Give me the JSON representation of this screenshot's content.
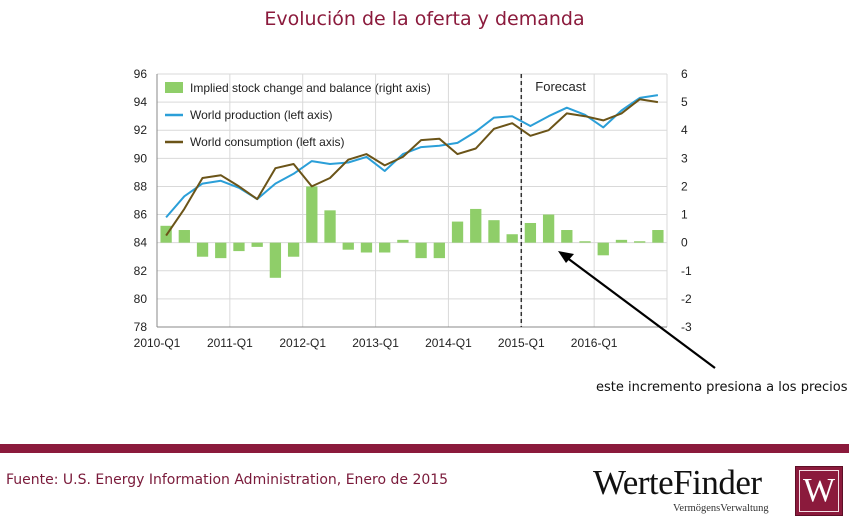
{
  "page": {
    "title": "Evolución de la oferta y demanda",
    "annotation": "este incremento presiona a los precios",
    "source": "Fuente: U.S. Energy Information Administration, Enero de 2015",
    "logo": {
      "name": "WerteFinder",
      "tagline": "VermögensVerwaltung",
      "monogram": "W"
    }
  },
  "colors": {
    "title": "#8b1a3c",
    "bars": "#8fce69",
    "production": "#2b9fd8",
    "consumption": "#6b5418",
    "forecast_line": "#333333",
    "footer_bar": "#8b1a3c"
  },
  "chart_data": {
    "type": "bar",
    "forecast_label": "Forecast",
    "forecast_start": "2015-Q1",
    "grid": true,
    "legend_position": "top-left",
    "x_tick_labels": [
      "2010-Q1",
      "2011-Q1",
      "2012-Q1",
      "2013-Q1",
      "2014-Q1",
      "2015-Q1",
      "2016-Q1"
    ],
    "categories": [
      "2010-Q1",
      "2010-Q2",
      "2010-Q3",
      "2010-Q4",
      "2011-Q1",
      "2011-Q2",
      "2011-Q3",
      "2011-Q4",
      "2012-Q1",
      "2012-Q2",
      "2012-Q3",
      "2012-Q4",
      "2013-Q1",
      "2013-Q2",
      "2013-Q3",
      "2013-Q4",
      "2014-Q1",
      "2014-Q2",
      "2014-Q3",
      "2014-Q4",
      "2015-Q1",
      "2015-Q2",
      "2015-Q3",
      "2015-Q4",
      "2016-Q1",
      "2016-Q2",
      "2016-Q3",
      "2016-Q4"
    ],
    "y_left": {
      "ylim": [
        78,
        96
      ],
      "ticks": [
        78,
        80,
        82,
        84,
        86,
        88,
        90,
        92,
        94,
        96
      ]
    },
    "y_right": {
      "ylim": [
        -3,
        6
      ],
      "ticks": [
        -3,
        -2,
        -1,
        0,
        1,
        2,
        3,
        4,
        5,
        6
      ]
    },
    "series": [
      {
        "name": "Implied stock change and balance (right axis)",
        "type": "bar",
        "axis": "right",
        "values": [
          0.6,
          0.45,
          -0.5,
          -0.55,
          -0.3,
          -0.15,
          -1.25,
          -0.5,
          2.0,
          1.15,
          -0.25,
          -0.35,
          -0.35,
          0.1,
          -0.55,
          -0.55,
          0.75,
          1.2,
          0.8,
          0.3,
          0.7,
          1.0,
          0.45,
          0.05,
          -0.45,
          0.1,
          0.05,
          0.45
        ]
      },
      {
        "name": "World production (left axis)",
        "type": "line",
        "axis": "left",
        "values": [
          85.8,
          87.3,
          88.2,
          88.4,
          87.9,
          87.1,
          88.2,
          88.9,
          89.8,
          89.6,
          89.7,
          90.1,
          89.1,
          90.3,
          90.8,
          90.9,
          91.1,
          91.9,
          92.9,
          93.0,
          92.3,
          93.0,
          93.6,
          93.1,
          92.2,
          93.4,
          94.3,
          94.5
        ]
      },
      {
        "name": "World consumption (left axis)",
        "type": "line",
        "axis": "left",
        "values": [
          84.5,
          86.4,
          88.6,
          88.8,
          88.0,
          87.1,
          89.3,
          89.6,
          88.0,
          88.6,
          89.9,
          90.3,
          89.5,
          90.1,
          91.3,
          91.4,
          90.3,
          90.7,
          92.1,
          92.5,
          91.6,
          92.0,
          93.2,
          93.0,
          92.7,
          93.2,
          94.2,
          94.0
        ]
      }
    ]
  }
}
